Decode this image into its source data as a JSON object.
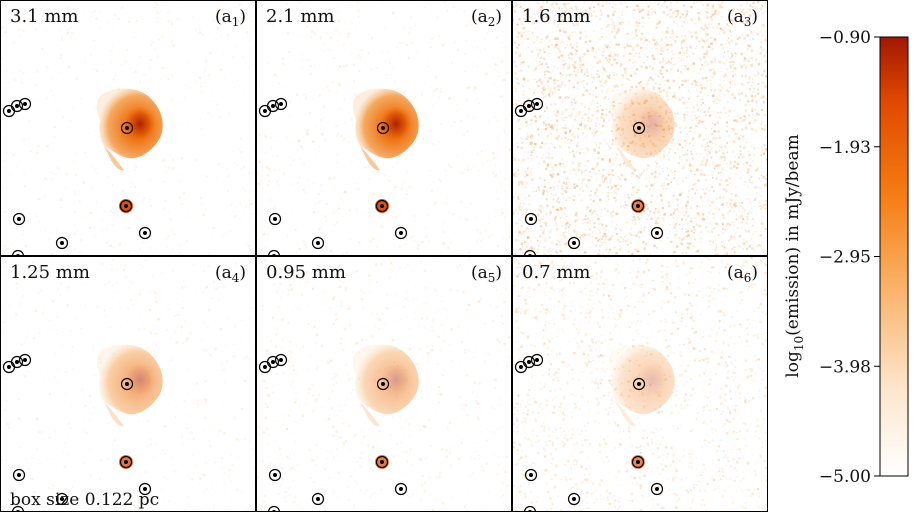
{
  "panels": [
    {
      "label": "3.1 mm",
      "tag": "(a",
      "sub": "1",
      "tagClose": ")",
      "noise": 0.05,
      "blob": 1.0,
      "blobTint": "#f07a1a"
    },
    {
      "label": "2.1 mm",
      "tag": "(a",
      "sub": "2",
      "tagClose": ")",
      "noise": 0.1,
      "blob": 1.0,
      "blobTint": "#f07a1a"
    },
    {
      "label": "1.6 mm",
      "tag": "(a",
      "sub": "3",
      "tagClose": ")",
      "noise": 0.85,
      "blob": 0.35,
      "blobTint": "#f07a1a"
    },
    {
      "label": "1.25 mm",
      "tag": "(a",
      "sub": "4",
      "tagClose": ")",
      "noise": 0.06,
      "blob": 0.55,
      "blobTint": "#f08a2a"
    },
    {
      "label": "0.95 mm",
      "tag": "(a",
      "sub": "5",
      "tagClose": ")",
      "noise": 0.12,
      "blob": 0.45,
      "blobTint": "#f08a2a"
    },
    {
      "label": "0.7 mm",
      "tag": "(a",
      "sub": "6",
      "tagClose": ")",
      "noise": 0.4,
      "blob": 0.3,
      "blobTint": "#f08a2a"
    }
  ],
  "box_note": "box size 0.122 pc",
  "colorbar": {
    "title_prefix": "log",
    "title_sub": "10",
    "title_suffix": "(emission) in mJy/beam",
    "ticks": [
      "−0.90",
      "−1.93",
      "−2.95",
      "−3.98",
      "−5.00"
    ],
    "colors": [
      "#a31800",
      "#e04a00",
      "#f57a10",
      "#f9ad60",
      "#fde6cc",
      "#ffffff"
    ]
  },
  "colors": {
    "circle": "#000000",
    "frame": "#000000"
  }
}
